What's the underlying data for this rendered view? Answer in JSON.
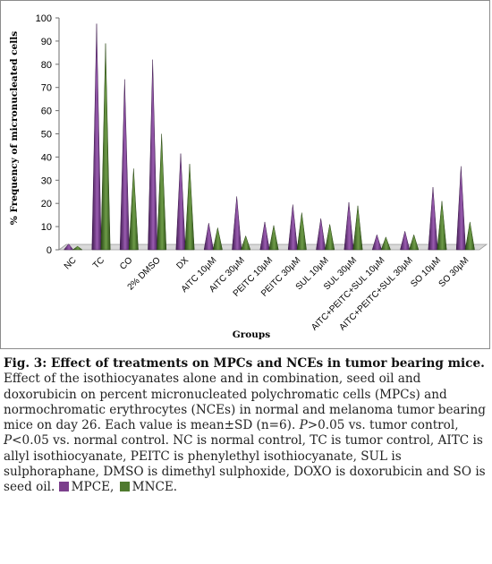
{
  "chart_data": {
    "type": "bar",
    "xlabel": "Groups",
    "ylabel": "% Frequency of micronucleated cells",
    "ylim": [
      0,
      100
    ],
    "yticks": [
      0,
      10,
      20,
      30,
      40,
      50,
      60,
      70,
      80,
      90,
      100
    ],
    "grid": false,
    "categories": [
      "NC",
      "TC",
      "CO",
      "2% DMSO",
      "DX",
      "AITC 10μM",
      "AITC 30μM",
      "PEITC 10μM",
      "PEITC 30μM",
      "SUL 10μM",
      "SUL 30μM",
      "AITC+PEITC+SUL 10μM",
      "AITC+PEITC+SUL 30μM",
      "SO 10μM",
      "SO 30μM"
    ],
    "series": [
      {
        "name": "MPCE",
        "color": "#7b3f8c",
        "values": [
          2.5,
          97.5,
          73.5,
          82,
          41.5,
          11.5,
          23,
          12,
          19.5,
          13.5,
          20.5,
          6.5,
          8,
          27,
          36
        ]
      },
      {
        "name": "MNCE",
        "color": "#4f7a2e",
        "values": [
          1.5,
          89,
          35,
          50,
          37,
          9.5,
          6,
          10.5,
          16,
          11,
          19,
          5.5,
          6.5,
          21,
          12
        ]
      }
    ]
  },
  "caption": {
    "title": "Fig. 3: Effect of treatments on MPCs and NCEs in tumor bearing mice.",
    "body_1": " Effect of the isothiocyanates alone and in combination, seed oil and doxorubicin on percent micronucleated polychromatic cells (MPCs) and normochromatic erythrocytes (NCEs) in normal and melanoma tumor bearing mice on day 26. Each value is mean±SD (n=6). ",
    "p1": "P",
    "body_2": ">0.05 vs. tumor control, ",
    "p2": "P",
    "body_3": "<0.05 vs. normal control. NC is normal control, TC is tumor control, AITC is allyl isothiocyanate, PEITC is phenylethyl isothiocyanate, SUL is sulphoraphane, DMSO is dimethyl sulphoxide, DOXO is doxorubicin and SO is seed oil.",
    "legend_mpce": "MPCE,",
    "legend_mnce": "MNCE."
  }
}
